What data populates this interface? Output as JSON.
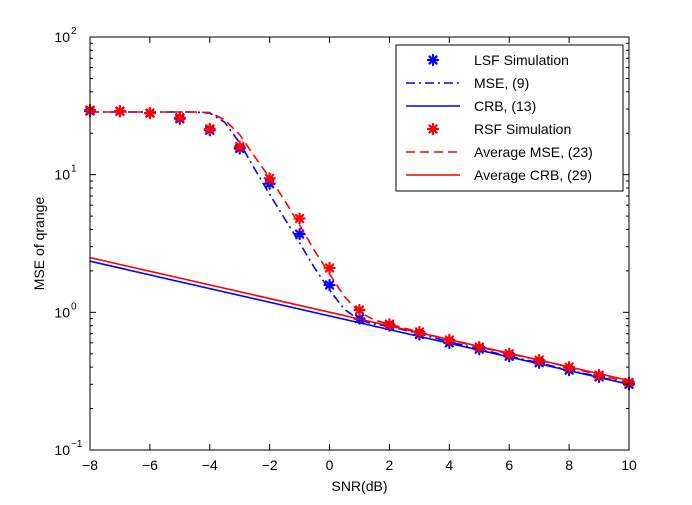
{
  "chart_data": {
    "type": "line",
    "title": "",
    "xlabel": "SNR(dB)",
    "ylabel": "MSE of qrange",
    "xlim": [
      -8,
      10
    ],
    "ylim": [
      0.1,
      100
    ],
    "yscale": "log",
    "grid": false,
    "legend_position": "top-right",
    "x_ticks": [
      -8,
      -6,
      -4,
      -2,
      0,
      2,
      4,
      6,
      8,
      10
    ],
    "x_tick_labels": [
      "−8",
      "−6",
      "−4",
      "−2",
      "0",
      "2",
      "4",
      "6",
      "8",
      "10"
    ],
    "y_ticks": [
      0.1,
      1,
      10,
      100
    ],
    "y_tick_labels": [
      {
        "base": "10",
        "exp": "−1"
      },
      {
        "base": "10",
        "exp": "0"
      },
      {
        "base": "10",
        "exp": "1"
      },
      {
        "base": "10",
        "exp": "2"
      }
    ],
    "series": [
      {
        "name": "LSF Simulation",
        "style": "marker",
        "color": "#0000ff",
        "x": [
          -8,
          -7,
          -6,
          -5,
          -4,
          -3,
          -2,
          -1,
          0,
          1,
          2,
          3,
          4,
          5,
          6,
          7,
          8,
          9,
          10
        ],
        "y": [
          29,
          28.8,
          28,
          25.5,
          21,
          15.5,
          8.6,
          3.7,
          1.58,
          0.9,
          0.8,
          0.69,
          0.6,
          0.54,
          0.48,
          0.43,
          0.38,
          0.34,
          0.3
        ]
      },
      {
        "name": "MSE, (9)",
        "style": "dashdot",
        "color": "#0000ff",
        "x": [
          -8,
          -6,
          -4.5,
          -4,
          -3.5,
          -3,
          -2.5,
          -2,
          -1.5,
          -1,
          -0.5,
          0,
          0.5,
          1,
          1.5,
          2,
          3,
          4,
          5,
          6,
          7,
          8,
          9,
          10
        ],
        "y": [
          28.5,
          28.5,
          28.5,
          28,
          24,
          17,
          11,
          7.2,
          4.8,
          3.2,
          2.1,
          1.45,
          1.05,
          0.88,
          0.82,
          0.79,
          0.7,
          0.61,
          0.54,
          0.48,
          0.43,
          0.38,
          0.34,
          0.3
        ]
      },
      {
        "name": "CRB, (13)",
        "style": "solid",
        "color": "#0000ff",
        "x": [
          -8,
          10
        ],
        "y": [
          2.35,
          0.3
        ]
      },
      {
        "name": "RSF Simulation",
        "style": "marker",
        "color": "#ff0000",
        "x": [
          -8,
          -7,
          -6,
          -5,
          -4,
          -3,
          -2,
          -1,
          0,
          1,
          2,
          3,
          4,
          5,
          6,
          7,
          8,
          9,
          10
        ],
        "y": [
          29.5,
          29,
          28,
          26,
          21.5,
          16,
          9.4,
          4.8,
          2.1,
          1.04,
          0.82,
          0.72,
          0.63,
          0.56,
          0.5,
          0.45,
          0.4,
          0.35,
          0.31
        ]
      },
      {
        "name": "Average MSE, (23)",
        "style": "dashed",
        "color": "#ff0000",
        "x": [
          -8,
          -6,
          -4.5,
          -4,
          -3.5,
          -3,
          -2.5,
          -2,
          -1.5,
          -1,
          -0.5,
          0,
          0.5,
          1,
          1.5,
          2,
          3,
          4,
          5,
          6,
          7,
          8,
          9,
          10
        ],
        "y": [
          28.5,
          28.5,
          28.5,
          28.3,
          25,
          19.5,
          13.5,
          9.5,
          6.5,
          4.3,
          2.8,
          1.9,
          1.3,
          1.0,
          0.88,
          0.82,
          0.72,
          0.63,
          0.56,
          0.5,
          0.45,
          0.4,
          0.35,
          0.31
        ]
      },
      {
        "name": "Average CRB, (29)",
        "style": "solid",
        "color": "#ff0000",
        "x": [
          -8,
          10
        ],
        "y": [
          2.5,
          0.32
        ]
      }
    ]
  }
}
